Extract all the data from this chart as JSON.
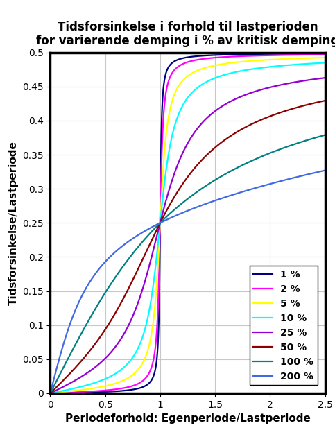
{
  "title_line1": "Tidsforsinkelse i forhold til lastperioden",
  "title_line2": "for varierende demping i % av kritisk demping",
  "xlabel": "Periodeforhold: Egenperiode/Lastperiode",
  "ylabel": "Tidsforsinkelse/Lastperiode",
  "xlim": [
    0,
    2.5
  ],
  "ylim": [
    0,
    0.5
  ],
  "xticks": [
    0,
    0.5,
    1.0,
    1.5,
    2.0,
    2.5
  ],
  "yticks": [
    0,
    0.05,
    0.1,
    0.15,
    0.2,
    0.25,
    0.3,
    0.35,
    0.4,
    0.45,
    0.5
  ],
  "damping_ratios": [
    0.01,
    0.02,
    0.05,
    0.1,
    0.25,
    0.5,
    1.0,
    2.0
  ],
  "legend_labels": [
    "1 %",
    "2 %",
    "5 %",
    "10 %",
    "25 %",
    "50 %",
    "100 %",
    "200 %"
  ],
  "colors": [
    "#000080",
    "#FF00FF",
    "#FFFF00",
    "#00FFFF",
    "#9400D3",
    "#8B0000",
    "#008080",
    "#4169E1"
  ],
  "linewidth": 1.6,
  "background_color": "#FFFFFF",
  "grid_color": "#C8C8C8",
  "figsize": [
    4.83,
    6.3
  ],
  "dpi": 100,
  "title_fontsize": 12,
  "label_fontsize": 11,
  "tick_fontsize": 10,
  "legend_fontsize": 10
}
